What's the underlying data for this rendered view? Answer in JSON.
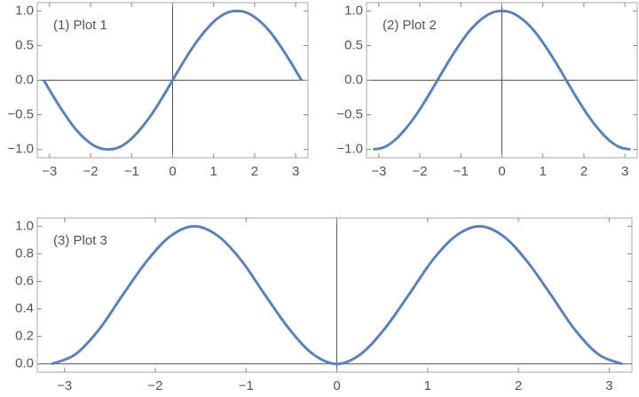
{
  "chart_data": [
    {
      "type": "line",
      "title": "(1) Plot 1",
      "x": [
        -3.14,
        -2.88,
        -2.62,
        -2.36,
        -2.09,
        -1.83,
        -1.57,
        -1.31,
        -1.05,
        -0.79,
        -0.52,
        -0.26,
        0,
        0.26,
        0.52,
        0.79,
        1.05,
        1.31,
        1.57,
        1.83,
        2.09,
        2.36,
        2.62,
        2.88,
        3.14
      ],
      "series": [
        {
          "color": "#5e81b5",
          "values": [
            0,
            -0.26,
            -0.5,
            -0.71,
            -0.87,
            -0.97,
            -1,
            -0.97,
            -0.87,
            -0.71,
            -0.5,
            -0.26,
            0,
            0.26,
            0.5,
            0.71,
            0.87,
            0.97,
            1,
            0.97,
            0.87,
            0.71,
            0.5,
            0.26,
            0
          ]
        }
      ],
      "xlim": [
        -3.3,
        3.3
      ],
      "ylim": [
        -1.12,
        1.12
      ],
      "xticks": [
        {
          "value": -3,
          "label": "−3"
        },
        {
          "value": -2,
          "label": "−2"
        },
        {
          "value": -1,
          "label": "−1"
        },
        0,
        1,
        2,
        3
      ],
      "yticks": [
        {
          "value": -1,
          "label": "−1.0"
        },
        {
          "value": -0.5,
          "label": "−0.5"
        },
        {
          "value": 0,
          "label": "0.0"
        },
        0.5,
        {
          "value": 1,
          "label": "1.0"
        }
      ]
    },
    {
      "type": "line",
      "title": "(2) Plot 2",
      "x": [
        -3.14,
        -2.88,
        -2.62,
        -2.36,
        -2.09,
        -1.83,
        -1.57,
        -1.31,
        -1.05,
        -0.79,
        -0.52,
        -0.26,
        0,
        0.26,
        0.52,
        0.79,
        1.05,
        1.31,
        1.57,
        1.83,
        2.09,
        2.36,
        2.62,
        2.88,
        3.14
      ],
      "series": [
        {
          "color": "#5e81b5",
          "values": [
            -1,
            -0.97,
            -0.87,
            -0.71,
            -0.5,
            -0.26,
            0,
            0.26,
            0.5,
            0.71,
            0.87,
            0.97,
            1,
            0.97,
            0.87,
            0.71,
            0.5,
            0.26,
            0,
            -0.26,
            -0.5,
            -0.71,
            -0.87,
            -0.97,
            -1
          ]
        }
      ],
      "xlim": [
        -3.3,
        3.3
      ],
      "ylim": [
        -1.12,
        1.12
      ],
      "xticks": [
        {
          "value": -3,
          "label": "−3"
        },
        {
          "value": -2,
          "label": "−2"
        },
        {
          "value": -1,
          "label": "−1"
        },
        0,
        1,
        2,
        3
      ],
      "yticks": [
        {
          "value": -1,
          "label": "−1.0"
        },
        {
          "value": -0.5,
          "label": "−0.5"
        },
        {
          "value": 0,
          "label": "0.0"
        },
        0.5,
        {
          "value": 1,
          "label": "1.0"
        }
      ]
    },
    {
      "type": "line",
      "title": "(3) Plot 3",
      "x": [
        -3.14,
        -2.88,
        -2.62,
        -2.36,
        -2.09,
        -1.83,
        -1.57,
        -1.31,
        -1.05,
        -0.79,
        -0.52,
        -0.26,
        0,
        0.26,
        0.52,
        0.79,
        1.05,
        1.31,
        1.57,
        1.83,
        2.09,
        2.36,
        2.62,
        2.88,
        3.14
      ],
      "series": [
        {
          "color": "#5e81b5",
          "values": [
            0,
            0.07,
            0.25,
            0.5,
            0.75,
            0.93,
            1,
            0.93,
            0.75,
            0.5,
            0.25,
            0.07,
            0,
            0.07,
            0.25,
            0.5,
            0.75,
            0.93,
            1,
            0.93,
            0.75,
            0.5,
            0.25,
            0.07,
            0
          ]
        }
      ],
      "xlim": [
        -3.3,
        3.25
      ],
      "ylim": [
        -0.06,
        1.06
      ],
      "xticks": [
        {
          "value": -3,
          "label": "−3"
        },
        {
          "value": -2,
          "label": "−2"
        },
        {
          "value": -1,
          "label": "−1"
        },
        0,
        1,
        2,
        3
      ],
      "yticks": [
        {
          "value": 0,
          "label": "0.0"
        },
        0.2,
        0.4,
        0.6,
        0.8,
        {
          "value": 1,
          "label": "1.0"
        }
      ]
    }
  ]
}
